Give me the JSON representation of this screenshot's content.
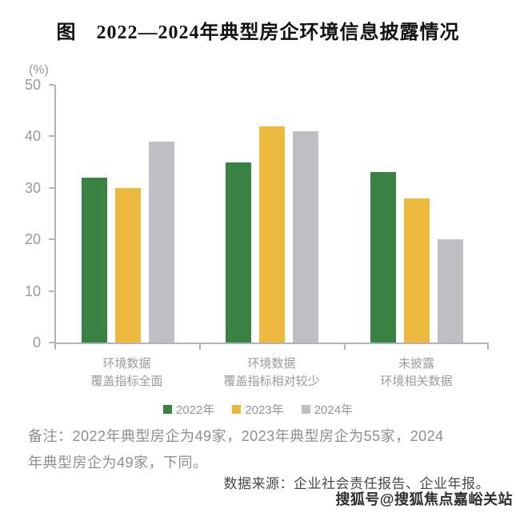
{
  "title": "图　2022—2024年典型房企环境信息披露情况",
  "chart_data": {
    "type": "bar",
    "title": "图　2022—2024年典型房企环境信息披露情况",
    "unit_label": "(%)",
    "xlabel": "",
    "ylabel": "(%)",
    "ylim": [
      0,
      50
    ],
    "y_ticks": [
      0,
      10,
      20,
      30,
      40,
      50
    ],
    "grid": false,
    "legend_position": "bottom",
    "categories": [
      {
        "line1": "环境数据",
        "line2": "覆盖指标全面"
      },
      {
        "line1": "环境数据",
        "line2": "覆盖指标相对较少"
      },
      {
        "line1": "未披露",
        "line2": "环境相关数据"
      }
    ],
    "series": [
      {
        "name": "2022年",
        "color": "#388343",
        "values": [
          32,
          35,
          33
        ]
      },
      {
        "name": "2023年",
        "color": "#ecb93c",
        "values": [
          30,
          42,
          28
        ]
      },
      {
        "name": "2024年",
        "color": "#bdbfc3",
        "values": [
          39,
          41,
          20
        ]
      }
    ],
    "axis_color": "#b2b4b7",
    "tick_label_color": "#9a9a9a"
  },
  "note": {
    "line1": "备注：2022年典型房企为49家，2023年典型房企为55家，2024",
    "line2": "年典型房企为49家，下同。"
  },
  "source": "数据来源：企业社会责任报告、企业年报。",
  "watermark": "搜狐号@搜狐焦点嘉峪关站"
}
